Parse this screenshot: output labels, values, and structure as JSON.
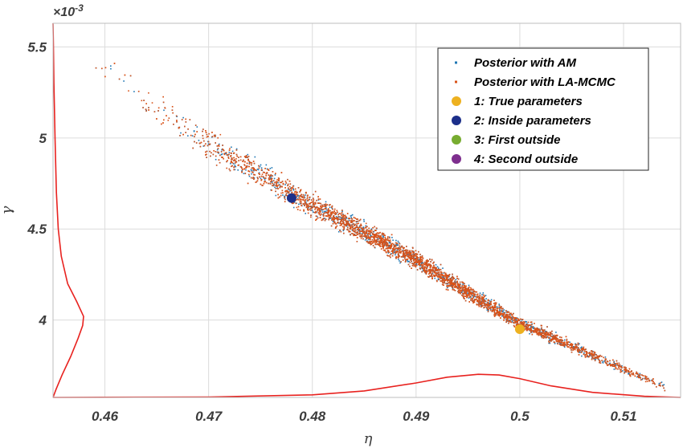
{
  "chart_data": {
    "type": "scatter",
    "title": "",
    "xlabel": "η",
    "ylabel": "γ",
    "y_multiplier": "×10",
    "y_multiplier_exp": "-3",
    "xlim": [
      0.455,
      0.5155
    ],
    "ylim": [
      3.575,
      5.63
    ],
    "x_ticks": [
      0.46,
      0.47,
      0.48,
      0.49,
      0.5,
      0.51
    ],
    "x_tick_labels": [
      "0.46",
      "0.47",
      "0.48",
      "0.49",
      "0.5",
      "0.51"
    ],
    "y_ticks": [
      4,
      4.5,
      5,
      5.5
    ],
    "y_tick_labels": [
      "4",
      "4.5",
      "5",
      "5.5"
    ],
    "grid": true,
    "legend_position": "top-right",
    "cloud": {
      "x_range": [
        0.457,
        0.514
      ],
      "center_line": [
        [
          0.457,
          5.53
        ],
        [
          0.46,
          5.38
        ],
        [
          0.465,
          5.16
        ],
        [
          0.47,
          4.97
        ],
        [
          0.475,
          4.8
        ],
        [
          0.48,
          4.63
        ],
        [
          0.485,
          4.48
        ],
        [
          0.49,
          4.33
        ],
        [
          0.495,
          4.15
        ],
        [
          0.5,
          3.98
        ],
        [
          0.505,
          3.86
        ],
        [
          0.51,
          3.73
        ],
        [
          0.514,
          3.63
        ]
      ]
    },
    "series": [
      {
        "name": "Posterior with AM",
        "marker": "dot",
        "color": "#1f77b4",
        "count": 2200
      },
      {
        "name": "Posterior with LA-MCMC",
        "marker": "dot",
        "color": "#d95319",
        "count": 3500
      },
      {
        "name": "1: True parameters",
        "marker": "circle",
        "color": "#edb120",
        "points": [
          [
            0.5,
            3.95
          ]
        ]
      },
      {
        "name": "2: Inside parameters",
        "marker": "circle",
        "color": "#1c2f8a",
        "points": [
          [
            0.478,
            4.67
          ]
        ]
      },
      {
        "name": "3: First outside",
        "marker": "circle",
        "color": "#77ac30",
        "points": []
      },
      {
        "name": "4: Second outside",
        "marker": "circle",
        "color": "#7e2f8e",
        "points": []
      }
    ],
    "marginal_x_density": [
      [
        0.455,
        0.0
      ],
      [
        0.47,
        0.003
      ],
      [
        0.48,
        0.018
      ],
      [
        0.485,
        0.045
      ],
      [
        0.49,
        0.1
      ],
      [
        0.493,
        0.14
      ],
      [
        0.496,
        0.16
      ],
      [
        0.498,
        0.155
      ],
      [
        0.5,
        0.13
      ],
      [
        0.503,
        0.08
      ],
      [
        0.507,
        0.035
      ],
      [
        0.512,
        0.008
      ],
      [
        0.5155,
        0.0
      ]
    ],
    "marginal_y_density": [
      [
        3.575,
        0.0
      ],
      [
        3.62,
        0.1
      ],
      [
        3.7,
        0.3
      ],
      [
        3.8,
        0.58
      ],
      [
        3.9,
        0.82
      ],
      [
        3.97,
        0.97
      ],
      [
        4.02,
        1.0
      ],
      [
        4.1,
        0.78
      ],
      [
        4.2,
        0.48
      ],
      [
        4.35,
        0.27
      ],
      [
        4.5,
        0.17
      ],
      [
        4.7,
        0.11
      ],
      [
        5.0,
        0.065
      ],
      [
        5.3,
        0.03
      ],
      [
        5.5,
        0.012
      ],
      [
        5.63,
        0.0
      ]
    ],
    "marginal_color": "#e8221f"
  }
}
